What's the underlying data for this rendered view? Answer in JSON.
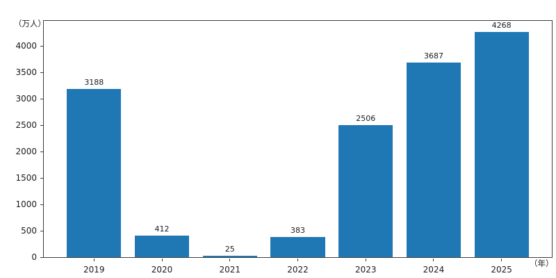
{
  "chart_data": {
    "type": "bar",
    "title": "",
    "categories": [
      "2019",
      "2020",
      "2021",
      "2022",
      "2023",
      "2024",
      "2025"
    ],
    "values": [
      3188,
      412,
      25,
      383,
      2506,
      3687,
      4268
    ],
    "value_labels": [
      "3188",
      "412",
      "25",
      "383",
      "2506",
      "3687",
      "4268"
    ],
    "xlabel": "（年）",
    "ylabel": "（万人）",
    "ylim": [
      0,
      4481
    ],
    "yticks": [
      0,
      500,
      1000,
      1500,
      2000,
      2500,
      3000,
      3500,
      4000
    ],
    "grid": false,
    "legend": null,
    "bar_color": "#1f77b4",
    "spine_color": "#3a3a3a",
    "text_color": "#1a1a1a",
    "background_color": "#ffffff"
  }
}
